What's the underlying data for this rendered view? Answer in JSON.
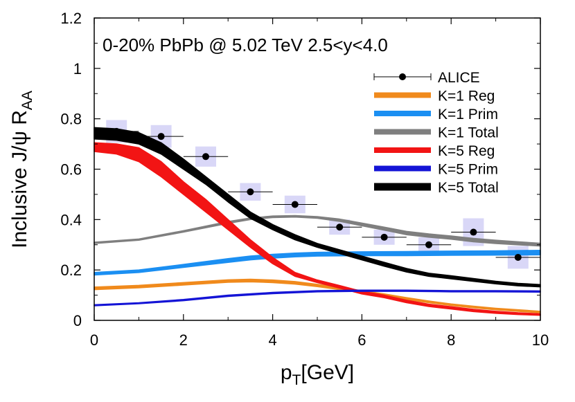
{
  "chart_data": {
    "type": "line",
    "annotation": "0-20% PbPb @ 5.02 TeV 2.5<y<4.0",
    "xlabel": {
      "main": "p",
      "sub": "T",
      "rest": "[GeV]"
    },
    "ylabel": {
      "main": "Inclusive J/ψ R",
      "sub": "AA"
    },
    "xlim": [
      0,
      10
    ],
    "ylim": [
      0,
      1.2
    ],
    "xticks": [
      0,
      2,
      4,
      6,
      8,
      10
    ],
    "yticks": [
      0,
      0.2,
      0.4,
      0.6,
      0.8,
      1,
      1.2
    ],
    "xtick_labels": [
      "0",
      "2",
      "4",
      "6",
      "8",
      "10"
    ],
    "ytick_labels": [
      "0",
      "0.2",
      "0.4",
      "0.6",
      "0.8",
      "1",
      "1.2"
    ],
    "grid": false,
    "legend_position": "top-right",
    "series": [
      {
        "name": "K=1 Reg",
        "color": "#f08a1c",
        "band": true,
        "x": [
          0,
          1,
          2,
          3,
          3.5,
          4,
          4.5,
          5,
          5.5,
          6,
          6.5,
          7,
          7.5,
          8,
          8.5,
          9,
          9.5,
          10
        ],
        "lo": [
          0.122,
          0.129,
          0.14,
          0.151,
          0.153,
          0.15,
          0.144,
          0.134,
          0.122,
          0.11,
          0.098,
          0.083,
          0.07,
          0.059,
          0.05,
          0.042,
          0.036,
          0.03
        ],
        "hi": [
          0.132,
          0.139,
          0.15,
          0.161,
          0.163,
          0.16,
          0.154,
          0.143,
          0.131,
          0.118,
          0.105,
          0.09,
          0.077,
          0.065,
          0.056,
          0.048,
          0.042,
          0.036
        ]
      },
      {
        "name": "K=1 Prim",
        "color": "#1b8ff2",
        "band": true,
        "x": [
          0,
          1,
          2,
          3,
          3.5,
          4,
          4.5,
          5,
          6,
          7,
          8,
          9,
          10
        ],
        "lo": [
          0.18,
          0.19,
          0.21,
          0.23,
          0.24,
          0.247,
          0.252,
          0.255,
          0.257,
          0.257,
          0.258,
          0.259,
          0.26
        ],
        "hi": [
          0.19,
          0.2,
          0.222,
          0.245,
          0.255,
          0.262,
          0.267,
          0.27,
          0.272,
          0.273,
          0.275,
          0.276,
          0.278
        ]
      },
      {
        "name": "K=1 Total",
        "color": "#7f7f7f",
        "band": true,
        "x": [
          0,
          1,
          2,
          3,
          3.5,
          4,
          4.5,
          5,
          5.5,
          6,
          6.5,
          7,
          7.5,
          8,
          8.5,
          9,
          9.5,
          10
        ],
        "lo": [
          0.305,
          0.318,
          0.35,
          0.385,
          0.4,
          0.408,
          0.41,
          0.405,
          0.393,
          0.375,
          0.358,
          0.34,
          0.33,
          0.322,
          0.312,
          0.305,
          0.3,
          0.295
        ],
        "hi": [
          0.31,
          0.323,
          0.356,
          0.392,
          0.406,
          0.414,
          0.416,
          0.412,
          0.402,
          0.386,
          0.37,
          0.353,
          0.343,
          0.335,
          0.325,
          0.318,
          0.312,
          0.306
        ]
      },
      {
        "name": "K=5 Reg",
        "color": "#f21414",
        "band": true,
        "x": [
          0,
          0.5,
          1,
          1.5,
          2,
          2.5,
          3,
          3.5,
          4,
          4.5,
          5,
          5.5,
          6,
          6.5,
          7,
          7.5,
          8,
          8.5,
          9,
          9.5,
          10
        ],
        "lo": [
          0.67,
          0.66,
          0.63,
          0.57,
          0.5,
          0.43,
          0.36,
          0.29,
          0.225,
          0.175,
          0.15,
          0.128,
          0.105,
          0.09,
          0.07,
          0.055,
          0.045,
          0.035,
          0.028,
          0.023,
          0.02
        ],
        "hi": [
          0.705,
          0.7,
          0.685,
          0.63,
          0.55,
          0.48,
          0.4,
          0.32,
          0.25,
          0.19,
          0.16,
          0.138,
          0.115,
          0.1,
          0.08,
          0.064,
          0.054,
          0.044,
          0.036,
          0.03,
          0.026
        ]
      },
      {
        "name": "K=5 Prim",
        "color": "#1414d6",
        "band": true,
        "x": [
          0,
          1,
          2,
          3,
          4,
          5,
          6,
          7,
          8,
          9,
          10
        ],
        "lo": [
          0.058,
          0.066,
          0.078,
          0.095,
          0.106,
          0.113,
          0.115,
          0.115,
          0.113,
          0.113,
          0.112
        ],
        "hi": [
          0.062,
          0.07,
          0.083,
          0.1,
          0.111,
          0.118,
          0.12,
          0.12,
          0.118,
          0.118,
          0.117
        ]
      },
      {
        "name": "K=5 Total",
        "color": "#000000",
        "band": true,
        "x": [
          0,
          0.5,
          1,
          1.5,
          2,
          2.5,
          3,
          3.5,
          4,
          4.5,
          5,
          5.5,
          6,
          6.5,
          7,
          7.5,
          8,
          8.5,
          9,
          9.5,
          10
        ],
        "lo": [
          0.72,
          0.715,
          0.7,
          0.66,
          0.6,
          0.54,
          0.47,
          0.405,
          0.36,
          0.32,
          0.29,
          0.265,
          0.24,
          0.215,
          0.192,
          0.175,
          0.165,
          0.155,
          0.145,
          0.137,
          0.133
        ],
        "hi": [
          0.765,
          0.76,
          0.745,
          0.705,
          0.64,
          0.57,
          0.5,
          0.43,
          0.38,
          0.34,
          0.305,
          0.28,
          0.255,
          0.23,
          0.206,
          0.187,
          0.177,
          0.166,
          0.155,
          0.147,
          0.142
        ]
      }
    ],
    "data_series": {
      "name": "ALICE",
      "points": [
        {
          "x": 0.5,
          "y": 0.75,
          "sys": 0.045,
          "xerr": 0.5
        },
        {
          "x": 1.5,
          "y": 0.73,
          "sys": 0.045,
          "xerr": 0.5
        },
        {
          "x": 2.5,
          "y": 0.65,
          "sys": 0.04,
          "xerr": 0.5
        },
        {
          "x": 3.5,
          "y": 0.51,
          "sys": 0.035,
          "xerr": 0.5
        },
        {
          "x": 4.5,
          "y": 0.46,
          "sys": 0.035,
          "xerr": 0.5
        },
        {
          "x": 5.5,
          "y": 0.37,
          "sys": 0.03,
          "xerr": 0.5
        },
        {
          "x": 6.5,
          "y": 0.33,
          "sys": 0.03,
          "xerr": 0.5
        },
        {
          "x": 7.5,
          "y": 0.3,
          "sys": 0.03,
          "xerr": 0.5
        },
        {
          "x": 8.5,
          "y": 0.35,
          "sys": 0.055,
          "xerr": 0.5
        },
        {
          "x": 9.5,
          "y": 0.25,
          "sys": 0.045,
          "xerr": 0.5
        }
      ],
      "box_color": "#d9d7f7",
      "marker_color": "#000000"
    }
  }
}
